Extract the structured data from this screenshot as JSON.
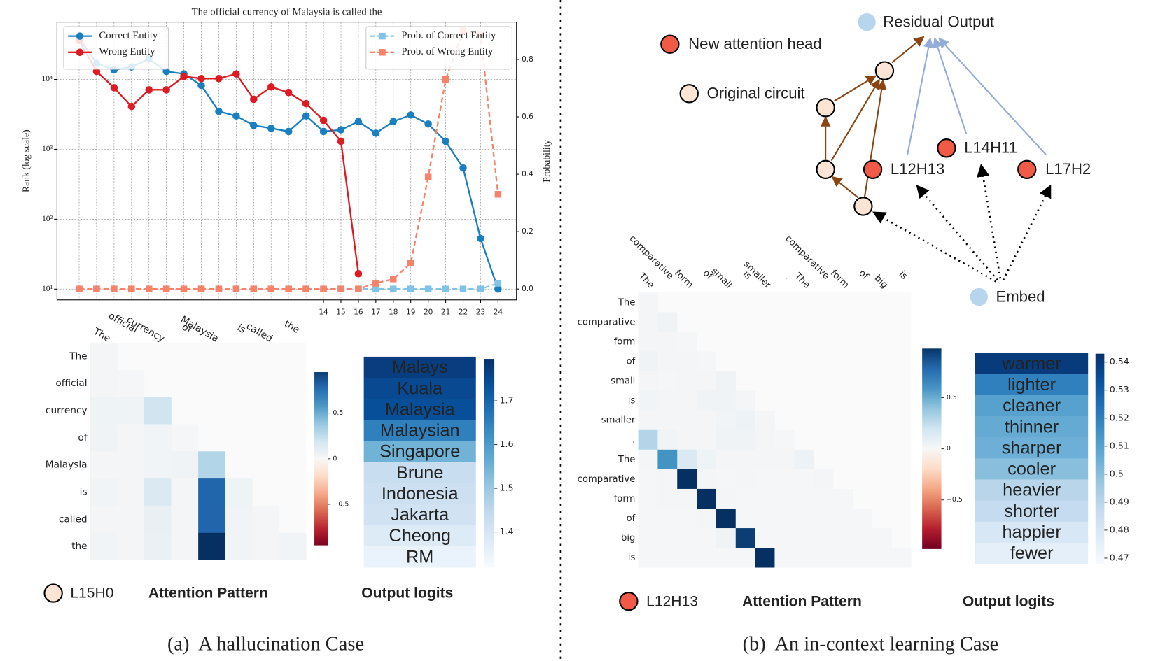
{
  "chart_data": [
    {
      "type": "line",
      "title": "The official currency of Malaysia is called the",
      "y_label": "Rank (log scale)",
      "y2_label": "Probability",
      "categories": [
        null,
        null,
        null,
        null,
        null,
        null,
        null,
        null,
        null,
        null,
        null,
        null,
        null,
        null,
        "14",
        "15",
        "16",
        "17",
        "18",
        "19",
        "20",
        "21",
        "22",
        "23",
        "24"
      ],
      "ylog": true,
      "ylim": [
        7,
        66000
      ],
      "yticks": [
        {
          "value": 10,
          "label": "10¹"
        },
        {
          "value": 100,
          "label": "10²"
        },
        {
          "value": 1000,
          "label": "10³"
        },
        {
          "value": 10000,
          "label": "10⁴"
        }
      ],
      "y2lim": [
        -0.038,
        0.93
      ],
      "y2ticks": [
        {
          "value": 0,
          "label": "0.0"
        },
        0.2,
        0.4,
        0.6,
        0.8
      ],
      "grid": true,
      "legend": "upper left",
      "legend_y2": "upper right",
      "series": [
        {
          "name": "Correct Entity",
          "color": "#1a7fbf",
          "marker": "circle",
          "dashed": false,
          "values": [
            39000,
            17000,
            13700,
            15100,
            19700,
            13000,
            12000,
            8200,
            3500,
            3000,
            2200,
            2000,
            1800,
            3000,
            1800,
            1900,
            2500,
            1700,
            2500,
            3100,
            2300,
            1300,
            540,
            53,
            10
          ]
        },
        {
          "name": "Wrong Entity",
          "color": "#de1a22",
          "marker": "circle",
          "dashed": false,
          "values": [
            36000,
            13000,
            7600,
            4100,
            7100,
            7100,
            11000,
            10300,
            10300,
            12000,
            5200,
            7800,
            6500,
            4500,
            2600,
            1300,
            16.6,
            null,
            null,
            null,
            null,
            null,
            null,
            null,
            null
          ]
        },
        {
          "name": "Prob. of Correct Entity",
          "color": "#80c3e6",
          "marker": "square",
          "dashed": true,
          "axis": "y2",
          "values": [
            0,
            0,
            0,
            0,
            0,
            0,
            0,
            0,
            0,
            0,
            0,
            0,
            0,
            0,
            0,
            0,
            0,
            0,
            0,
            0,
            0,
            0,
            0,
            0,
            0.02
          ]
        },
        {
          "name": "Prob. of Wrong Entity",
          "color": "#f7836b",
          "marker": "square",
          "dashed": true,
          "axis": "y2",
          "values": [
            0,
            0,
            0,
            0,
            0,
            0,
            0,
            0,
            0,
            0,
            0,
            0,
            0,
            0,
            0,
            0,
            0,
            0.02,
            0.035,
            0.09,
            0.39,
            0.73,
            0.9,
            0.885,
            0.33
          ]
        }
      ]
    },
    {
      "type": "heatmap",
      "colormap": "RdBu",
      "columns": [
        "The",
        "official",
        "currency",
        "of",
        "Malaysia",
        "is",
        "called",
        "the"
      ],
      "rows": [
        "The",
        "official",
        "currency",
        "of",
        "Malaysia",
        "is",
        "called",
        "the"
      ],
      "values": [
        [
          0.02
        ],
        [
          0.02,
          0.01
        ],
        [
          0.05,
          0.04,
          0.2
        ],
        [
          0.04,
          0.02,
          0.03,
          0.01
        ],
        [
          0.02,
          0.02,
          0.03,
          0.04,
          0.3
        ],
        [
          0.03,
          0.02,
          0.15,
          0.02,
          0.8,
          0.05
        ],
        [
          0.02,
          0.02,
          0.08,
          0.02,
          0.8,
          0.03,
          0.02
        ],
        [
          0.03,
          0.02,
          0.07,
          0.02,
          1.0,
          0.03,
          0.02,
          0.03
        ]
      ],
      "clim": [
        -0.95,
        0.95
      ],
      "cticks": [
        0.5,
        0,
        {
          "value": -0.5,
          "label": "−0.5"
        }
      ]
    },
    {
      "type": "logits",
      "colormap": "Blues",
      "categories": [
        "Malays",
        "Kuala",
        "Malaysia",
        "Malaysian",
        "Singapore",
        "Brune",
        "Indonesia",
        "Jakarta",
        "Cheong",
        "RM"
      ],
      "values": [
        1.77,
        1.75,
        1.74,
        1.65,
        1.55,
        1.43,
        1.42,
        1.41,
        1.38,
        1.35
      ],
      "clim": [
        1.319,
        1.796
      ],
      "cticks": [
        1.4,
        1.5,
        1.6,
        1.7
      ]
    },
    {
      "type": "heatmap",
      "colormap": "RdBu",
      "columns": [
        "The",
        "comparative",
        "form",
        "of",
        "small",
        "is",
        "smaller",
        ".",
        "The",
        "comparative",
        "form",
        "of",
        "big",
        "is"
      ],
      "rows": [
        "The",
        "comparative",
        "form",
        "of",
        "small",
        "is",
        "smaller",
        ".",
        "The",
        "comparative",
        "form",
        "of",
        "big",
        "is"
      ],
      "values": [
        [
          0.02
        ],
        [
          0.02,
          0.04
        ],
        [
          0.02,
          0.02,
          0.01
        ],
        [
          0.04,
          0.02,
          0.02,
          0.01
        ],
        [
          0.02,
          0.01,
          0.02,
          0.02,
          0.04
        ],
        [
          0.03,
          0.02,
          0.02,
          0.04,
          0.04,
          0.02
        ],
        [
          0.02,
          0.02,
          0.02,
          0.02,
          0.03,
          0.06,
          0.02
        ],
        [
          0.3,
          0.03,
          0.02,
          0.02,
          0.04,
          0.04,
          0.02,
          0.01
        ],
        [
          0.02,
          0.6,
          0.15,
          0.05,
          0.02,
          0.02,
          0.02,
          0.02,
          0.06
        ],
        [
          0.01,
          0.02,
          1.0,
          0.02,
          0.01,
          0.02,
          0.01,
          0.01,
          0.01,
          0.02
        ],
        [
          0.01,
          0.02,
          0.02,
          1.0,
          0.02,
          0.01,
          0.01,
          0.01,
          0.01,
          0.01,
          0.01
        ],
        [
          0.01,
          0.01,
          0.01,
          0.02,
          1.0,
          0.01,
          0.01,
          0.01,
          0.01,
          0.01,
          0.01,
          0.01
        ],
        [
          0.01,
          0.01,
          0.01,
          0.01,
          0.04,
          0.95,
          0.01,
          0.01,
          0.01,
          0.01,
          0.01,
          0.01,
          0.01
        ],
        [
          0.01,
          0.01,
          0.01,
          0.01,
          0.01,
          0.01,
          1.0,
          0.01,
          0.01,
          0.01,
          0.01,
          0.01,
          0.01,
          0.01
        ]
      ],
      "clim": [
        -0.98,
        0.98
      ],
      "cticks": [
        0.5,
        0,
        {
          "value": -0.5,
          "label": "−0.5"
        }
      ]
    },
    {
      "type": "logits",
      "colormap": "Blues",
      "categories": [
        "warmer",
        "lighter",
        "cleaner",
        "thinner",
        "sharper",
        "cooler",
        "heavier",
        "shorter",
        "happier",
        "fewer"
      ],
      "values": [
        0.54,
        0.52,
        0.51,
        0.507,
        0.505,
        0.5,
        0.49,
        0.487,
        0.48,
        0.475
      ],
      "clim": [
        0.468,
        0.543
      ],
      "cticks": [
        0.47,
        0.48,
        0.49,
        0.5,
        0.51,
        0.52,
        0.53,
        0.54
      ]
    }
  ],
  "diagram": {
    "nodes": [
      {
        "label": "Residual Output"
      },
      {
        "label": "L12H13"
      },
      {
        "label": "L14H11"
      },
      {
        "label": "L17H2"
      },
      {
        "label": "Embed"
      }
    ],
    "legend": [
      {
        "label": "New attention head"
      },
      {
        "label": "Original circuit"
      }
    ]
  },
  "panels": [
    {
      "head": "L15H0",
      "attention_label": "Attention Pattern",
      "logits_label": "Output logits",
      "caption": "(a)  A hallucination Case"
    },
    {
      "head": "L12H13",
      "attention_label": "Attention Pattern",
      "logits_label": "Output logits",
      "caption": "(b)  An in-context learning Case"
    }
  ]
}
